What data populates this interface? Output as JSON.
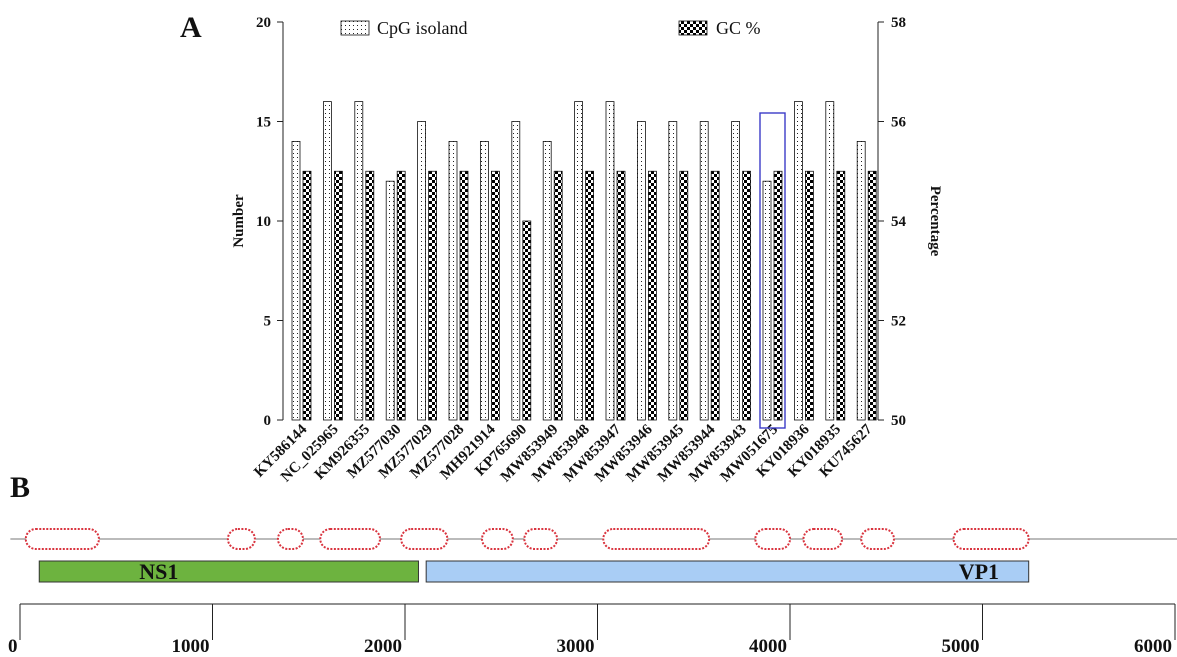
{
  "panels": {
    "a_label": "A",
    "b_label": "B"
  },
  "chart_data": [
    {
      "type": "bar",
      "categories": [
        "KY586144",
        "NC_025965",
        "KM926355",
        "MZ577030",
        "MZ577029",
        "MZ577028",
        "MH921914",
        "KP765690",
        "MW853949",
        "MW853948",
        "MW853947",
        "MW853946",
        "MW853945",
        "MW853944",
        "MW853943",
        "MW051675",
        "KY018936",
        "KY018935",
        "KU745627"
      ],
      "series": [
        {
          "name": "CpG isoland",
          "axis": "left",
          "pattern": "dots",
          "values": [
            14,
            16,
            16,
            12,
            15,
            14,
            14,
            15,
            14,
            16,
            16,
            15,
            15,
            15,
            15,
            12,
            16,
            16,
            14
          ]
        },
        {
          "name": "GC %",
          "axis": "right",
          "pattern": "checker",
          "values": [
            55,
            55,
            55,
            55,
            55,
            55,
            55,
            54,
            55,
            55,
            55,
            55,
            55,
            55,
            55,
            55,
            55,
            55,
            55
          ]
        }
      ],
      "ylabel": "Number",
      "ylim": [
        0,
        20
      ],
      "yticks": [
        0,
        5,
        10,
        15,
        20
      ],
      "y2label": "Percentage",
      "y2lim": [
        50,
        58
      ],
      "y2ticks": [
        50,
        52,
        54,
        56,
        58
      ],
      "highlight_category": "MW051675",
      "highlight_color": "#3b3bc8",
      "legend": "top",
      "grid": false
    },
    {
      "type": "genome-map",
      "xlim": [
        0,
        6000
      ],
      "xticks": [
        0,
        1000,
        2000,
        3000,
        4000,
        5000,
        6000
      ],
      "genes": [
        {
          "name": "NS1",
          "start": 100,
          "end": 2070,
          "color": "#6db33f"
        },
        {
          "name": "VP1",
          "start": 2110,
          "end": 5240,
          "color": "#a9cdf5"
        }
      ],
      "cpg_islands": [
        [
          30,
          410
        ],
        [
          1080,
          1220
        ],
        [
          1340,
          1470
        ],
        [
          1560,
          1870
        ],
        [
          1980,
          2220
        ],
        [
          2400,
          2560
        ],
        [
          2620,
          2790
        ],
        [
          3030,
          3580
        ],
        [
          3820,
          4000
        ],
        [
          4070,
          4270
        ],
        [
          4370,
          4540
        ],
        [
          4850,
          5240
        ]
      ],
      "island_color": "#d9343f",
      "line_range": [
        -50,
        6050
      ]
    }
  ]
}
